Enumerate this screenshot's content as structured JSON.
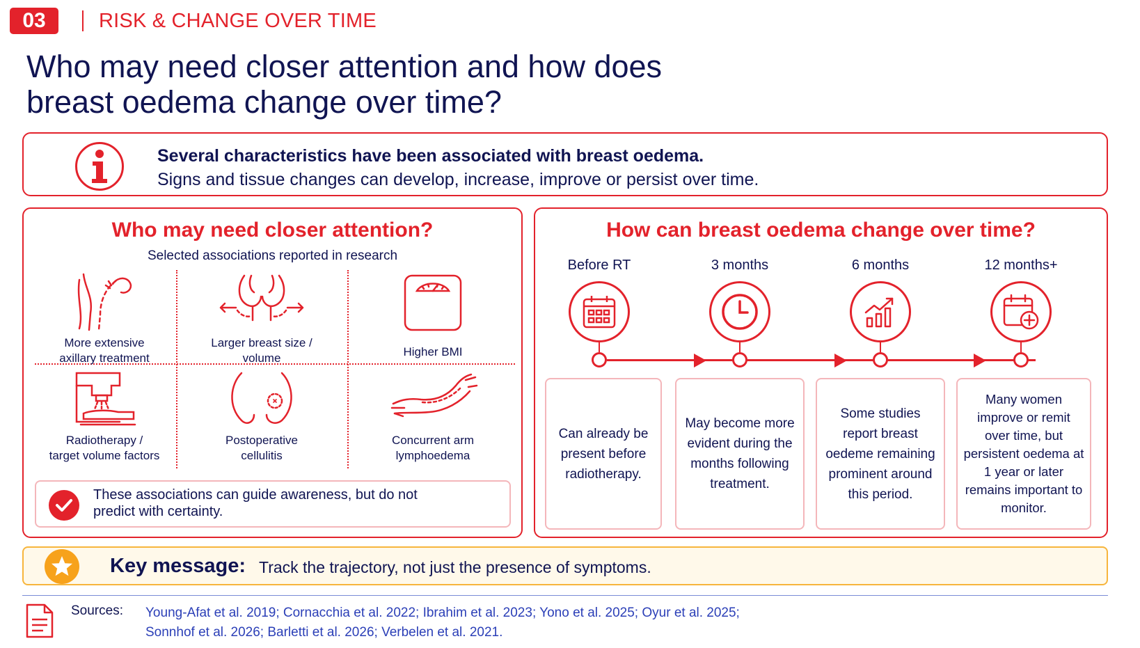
{
  "header": {
    "section_number": "03",
    "section_title": "RISK & CHANGE OVER TIME"
  },
  "title": {
    "line1": "Who may need closer attention and how does",
    "line2": "breast oedema change over time?"
  },
  "info": {
    "icon": "info-icon",
    "line1": "Several characteristics have been associated with breast oedema.",
    "line2": "Signs and tissue changes can develop, increase, improve or persist over time."
  },
  "attention": {
    "title": "Who may need closer attention?",
    "subtitle": "Selected associations reported in research",
    "factors": [
      {
        "icon": "axilla-icon",
        "line1": "More extensive",
        "line2": "axillary treatment"
      },
      {
        "icon": "breast-size-icon",
        "line1": "Larger breast size /",
        "line2": "volume"
      },
      {
        "icon": "scale-icon",
        "line1": "Higher BMI",
        "line2": ""
      },
      {
        "icon": "radiotherapy-machine-icon",
        "line1": "Radiotherapy /",
        "line2": "target volume factors"
      },
      {
        "icon": "cellulitis-icon",
        "line1": "Postoperative",
        "line2": "cellulitis"
      },
      {
        "icon": "arm-icon",
        "line1": "Concurrent arm",
        "line2": "lymphoedema"
      }
    ],
    "note": {
      "icon": "check-icon",
      "line1": "These associations can guide awareness, but do not",
      "line2": "predict with certainty."
    }
  },
  "timeline": {
    "title": "How can breast oedema change over time?",
    "stages": [
      {
        "label": "Before RT",
        "icon": "calendar-icon",
        "text": "Can already be present before radiotherapy."
      },
      {
        "label": "3 months",
        "icon": "clock-icon",
        "text": "May become more evident during the months following treatment."
      },
      {
        "label": "6 months",
        "icon": "trend-chart-icon",
        "text": "Some studies report breast oedeme remaining prominent around this period."
      },
      {
        "label": "12 months+",
        "icon": "calendar-plus-icon",
        "text": "Many women improve or remit over time, but persistent oedema at 1 year or later remains important to monitor."
      }
    ]
  },
  "key_message": {
    "icon": "star-icon",
    "heading": "Key message:",
    "text": "Track the trajectory, not just the presence of symptoms."
  },
  "sources": {
    "icon": "document-icon",
    "label": "Sources:",
    "line1": "Young-Afat et al. 2019; Cornacchia et al. 2022; Ibrahim et al. 2023; Yono et al. 2025; Oyur et al. 2025;",
    "line2": "Sonnhof et al. 2026; Barletti et al. 2026; Verbelen et al. 2021."
  },
  "colors": {
    "accent": "#e3222b",
    "navy": "#101452",
    "key_border": "#f7b53c",
    "key_icon": "#f7a21b",
    "link": "#2b3fb7"
  }
}
